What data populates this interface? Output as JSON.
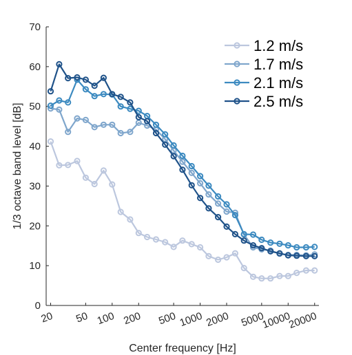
{
  "chart_data": {
    "type": "line",
    "title": "",
    "xlabel": "Center frequency [Hz]",
    "ylabel": "1/3 octave band level [dB]",
    "xscale": "log",
    "xlim": [
      17.78,
      22387
    ],
    "ylim": [
      0,
      70
    ],
    "xticks": [
      20,
      50,
      100,
      200,
      500,
      1000,
      2000,
      5000,
      10000,
      20000
    ],
    "xtick_labels": [
      "20",
      "50",
      "100",
      "200",
      "500",
      "1000",
      "2000",
      "5000",
      "10000",
      "20000"
    ],
    "yticks": [
      0,
      10,
      20,
      30,
      40,
      50,
      60,
      70
    ],
    "ytick_labels": [
      "0",
      "10",
      "20",
      "30",
      "40",
      "50",
      "60",
      "70"
    ],
    "grid": false,
    "legend_position": "top-right",
    "x": [
      20,
      25,
      31.5,
      40,
      50,
      63,
      80,
      100,
      125,
      160,
      200,
      250,
      315,
      400,
      500,
      630,
      800,
      1000,
      1250,
      1600,
      2000,
      2500,
      3150,
      4000,
      5000,
      6300,
      8000,
      10000,
      12500,
      16000,
      20000
    ],
    "series": [
      {
        "name": "1.2 m/s",
        "color": "#bcc7de",
        "values": [
          41.2,
          35.2,
          35.3,
          36.3,
          32.1,
          30.5,
          33.9,
          30.4,
          23.5,
          21.6,
          18.2,
          17.2,
          16.6,
          15.9,
          14.7,
          16.3,
          15.4,
          14.6,
          12.4,
          11.5,
          12.1,
          13.1,
          9.4,
          7.2,
          6.8,
          6.8,
          7.4,
          7.4,
          8.2,
          8.8,
          8.8
        ]
      },
      {
        "name": "1.7 m/s",
        "color": "#7fa6cc",
        "values": [
          49.5,
          49.2,
          43.6,
          47.0,
          46.6,
          44.8,
          45.4,
          45.4,
          43.3,
          43.6,
          45.9,
          45.2,
          44.2,
          41.8,
          38.9,
          36.1,
          33.3,
          30.7,
          27.9,
          25.6,
          23.6,
          23.3,
          17.8,
          14.6,
          14.1,
          13.8,
          13.0,
          12.7,
          12.7,
          12.6,
          12.8
        ]
      },
      {
        "name": "2.1 m/s",
        "color": "#3c8ac0",
        "values": [
          50.2,
          51.5,
          51.0,
          56.7,
          54.3,
          52.6,
          53.1,
          53.0,
          50.0,
          49.4,
          48.9,
          47.6,
          45.4,
          43.0,
          40.2,
          37.6,
          35.0,
          32.5,
          30.1,
          27.4,
          25.4,
          22.7,
          17.9,
          17.8,
          16.5,
          15.8,
          15.5,
          15.1,
          14.6,
          14.6,
          14.7
        ]
      },
      {
        "name": "2.5 m/s",
        "color": "#1f5289",
        "values": [
          53.8,
          60.6,
          57.1,
          57.3,
          56.7,
          55.2,
          57.2,
          53.1,
          52.4,
          51.0,
          47.3,
          46.3,
          43.3,
          40.4,
          37.5,
          34.1,
          30.2,
          27.0,
          24.4,
          22.2,
          19.8,
          17.9,
          16.3,
          15.1,
          14.4,
          13.6,
          13.1,
          12.6,
          12.5,
          12.4,
          12.4
        ]
      }
    ]
  }
}
